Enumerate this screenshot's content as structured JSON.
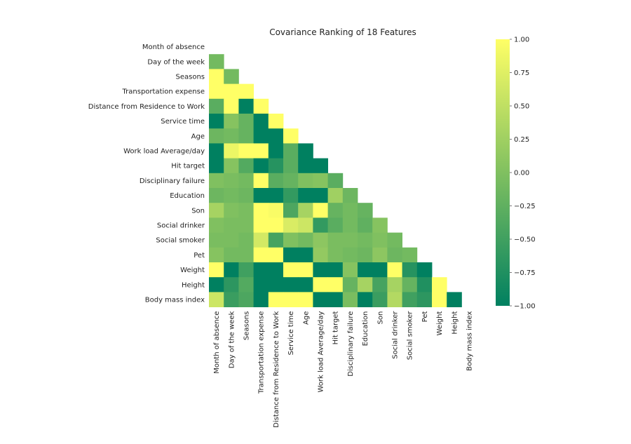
{
  "chart_data": {
    "type": "heatmap",
    "title": "Covariance Ranking of 18 Features",
    "labels": [
      "Month of absence",
      "Day of the week",
      "Seasons",
      "Transportation expense",
      "Distance from Residence to Work",
      "Service time",
      "Age",
      "Work load Average/day ",
      "Hit target",
      "Disciplinary failure",
      "Education",
      "Son",
      "Social drinker",
      "Social smoker",
      "Pet",
      "Weight",
      "Height",
      "Body mass index"
    ],
    "mask": "upper-triangle-and-diagonal",
    "values": [
      [],
      [
        -0.1
      ],
      [
        1.0,
        -0.1
      ],
      [
        1.0,
        1.0,
        1.0
      ],
      [
        -0.3,
        1.0,
        -1.0,
        1.0
      ],
      [
        -1.0,
        0.05,
        -0.2,
        -1.0,
        1.0
      ],
      [
        -0.15,
        -0.1,
        -0.2,
        -1.0,
        -1.0,
        1.0
      ],
      [
        -1.0,
        0.85,
        1.0,
        1.0,
        -1.0,
        -0.3,
        -1.0
      ],
      [
        -1.0,
        0.05,
        -0.35,
        -1.0,
        -0.7,
        -0.3,
        -1.0,
        -1.0
      ],
      [
        0.0,
        -0.05,
        -0.1,
        1.0,
        -0.3,
        -0.2,
        0.0,
        0.05,
        -0.3
      ],
      [
        -0.15,
        -0.1,
        -0.15,
        -1.0,
        -1.0,
        -0.6,
        -1.0,
        -1.0,
        0.25,
        -0.15
      ],
      [
        0.3,
        0.0,
        -0.05,
        1.0,
        0.95,
        -0.4,
        0.3,
        1.0,
        -0.2,
        -0.1,
        -0.2
      ],
      [
        0.0,
        -0.05,
        -0.05,
        1.0,
        1.0,
        0.7,
        0.6,
        -0.6,
        -0.3,
        -0.1,
        -0.25,
        0.05
      ],
      [
        -0.05,
        -0.05,
        -0.1,
        0.65,
        -0.45,
        0.0,
        -0.1,
        0.1,
        -0.05,
        -0.05,
        -0.1,
        0.0,
        -0.1
      ],
      [
        0.05,
        -0.1,
        -0.1,
        1.0,
        1.0,
        -1.0,
        -1.0,
        0.15,
        -0.05,
        -0.1,
        -0.15,
        0.1,
        -0.15,
        -0.1
      ],
      [
        1.0,
        -1.0,
        -0.5,
        -1.0,
        -1.0,
        1.0,
        1.0,
        -1.0,
        -1.0,
        0.05,
        -1.0,
        -1.0,
        1.0,
        -0.7,
        -1.0
      ],
      [
        -1.0,
        -0.65,
        -0.35,
        -1.0,
        -1.0,
        -1.0,
        -1.0,
        1.0,
        1.0,
        -0.2,
        0.3,
        -0.45,
        0.3,
        -0.2,
        -0.75,
        1.0
      ],
      [
        0.6,
        -0.55,
        -0.4,
        -1.0,
        1.0,
        1.0,
        1.0,
        -1.0,
        -1.0,
        -0.05,
        -1.0,
        -0.55,
        0.4,
        -0.5,
        -0.65,
        1.0,
        -1.0
      ]
    ],
    "colorbar": {
      "min": -1.0,
      "max": 1.0,
      "ticks": [
        "1.00",
        "0.75",
        "0.50",
        "0.25",
        "0.00",
        "−0.25",
        "−0.50",
        "−0.75",
        "−1.00"
      ],
      "tick_values": [
        1.0,
        0.75,
        0.5,
        0.25,
        0.0,
        -0.25,
        -0.5,
        -0.75,
        -1.0
      ],
      "colormap": [
        "#008060",
        "#80c060",
        "#ffff66"
      ]
    }
  }
}
